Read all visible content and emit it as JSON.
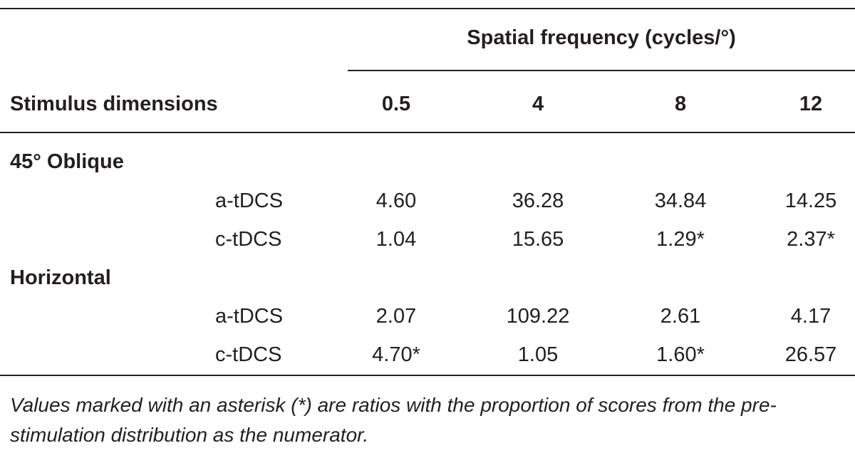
{
  "table": {
    "spanner_header": "Spatial frequency (cycles/°)",
    "stub_header": "Stimulus dimensions",
    "columns": [
      "0.5",
      "4",
      "8",
      "12"
    ],
    "groups": [
      {
        "label": "45° Oblique",
        "rows": [
          {
            "condition": "a-tDCS",
            "values": [
              "4.60",
              "36.28",
              "34.84",
              "14.25"
            ]
          },
          {
            "condition": "c-tDCS",
            "values": [
              "1.04",
              "15.65",
              "1.29*",
              "2.37*"
            ]
          }
        ]
      },
      {
        "label": "Horizontal",
        "rows": [
          {
            "condition": "a-tDCS",
            "values": [
              "2.07",
              "109.22",
              "2.61",
              "4.17"
            ]
          },
          {
            "condition": "c-tDCS",
            "values": [
              "4.70*",
              "1.05",
              "1.60*",
              "26.57"
            ]
          }
        ]
      }
    ],
    "footnote": "Values marked with an asterisk (*) are ratios with the proportion of scores from the pre-stimulation distribution as the numerator."
  }
}
